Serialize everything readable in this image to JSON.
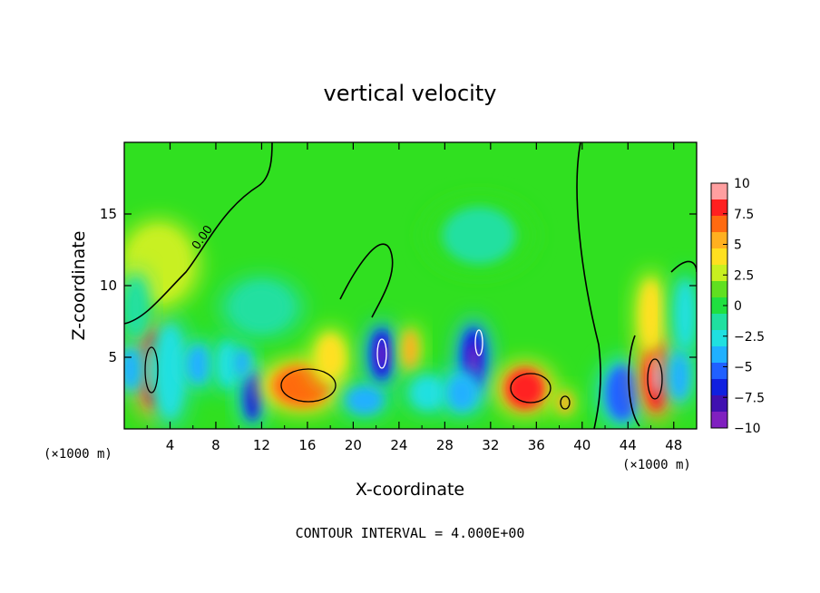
{
  "chart_data": {
    "type": "heatmap",
    "title": "vertical velocity",
    "xlabel": "X-coordinate",
    "ylabel": "Z-coordinate",
    "x_unit_left": "(×1000 m)",
    "x_unit_right": "(×1000 m)",
    "xlim": [
      0,
      50
    ],
    "ylim": [
      0,
      20
    ],
    "x_ticks": [
      4,
      8,
      12,
      16,
      20,
      24,
      28,
      32,
      36,
      40,
      44,
      48
    ],
    "x_tick_labels": [
      "4",
      "8",
      "12",
      "16",
      "20",
      "24",
      "28",
      "32",
      "36",
      "40",
      "44",
      "48"
    ],
    "y_ticks": [
      5,
      10,
      15
    ],
    "y_tick_labels": [
      "5",
      "10",
      "15"
    ],
    "colorbar": {
      "ticks": [
        10,
        7.5,
        5,
        2.5,
        0,
        -2.5,
        -5,
        -7.5,
        -10
      ],
      "tick_labels": [
        "10",
        "7.5",
        "5",
        "2.5",
        "0",
        "−2.5",
        "−5",
        "−7.5",
        "−10"
      ],
      "colors": [
        "#ff9fa0",
        "#ff2020",
        "#ff6a10",
        "#ffb020",
        "#ffe020",
        "#c8f020",
        "#60e020",
        "#20e040",
        "#20e0a0",
        "#20e0e0",
        "#20b0ff",
        "#2060ff",
        "#1020e0",
        "#4010b0",
        "#8020c0"
      ]
    },
    "contour_label": "0.00",
    "contour_interval_text": "CONTOUR INTERVAL = 4.000E+00",
    "cells": [
      {
        "x": 2.5,
        "z": 4.2,
        "w": 1.6,
        "h": 3.4,
        "v": 8.5
      },
      {
        "x": 0.6,
        "z": 4.2,
        "w": 1.0,
        "h": 1.8,
        "v": -4.0
      },
      {
        "x": 4.0,
        "z": 4.0,
        "w": 1.5,
        "h": 4.0,
        "v": -3.0
      },
      {
        "x": 6.5,
        "z": 4.5,
        "w": 1.2,
        "h": 1.6,
        "v": -5.0
      },
      {
        "x": 9.0,
        "z": 4.5,
        "w": 1.0,
        "h": 2.0,
        "v": -3.0
      },
      {
        "x": 11.2,
        "z": 2.3,
        "w": 1.0,
        "h": 2.2,
        "v": -7.5
      },
      {
        "x": 10.3,
        "z": 4.6,
        "w": 0.8,
        "h": 1.2,
        "v": -5.0
      },
      {
        "x": 15.5,
        "z": 3.0,
        "w": 3.2,
        "h": 1.8,
        "v": 6.0
      },
      {
        "x": 18.0,
        "z": 5.0,
        "w": 1.5,
        "h": 2.0,
        "v": 3.0
      },
      {
        "x": 21.0,
        "z": 2.0,
        "w": 2.0,
        "h": 1.2,
        "v": -3.5
      },
      {
        "x": 22.5,
        "z": 5.2,
        "w": 1.2,
        "h": 2.2,
        "v": -9.0
      },
      {
        "x": 25.0,
        "z": 5.5,
        "w": 0.8,
        "h": 1.8,
        "v": 4.0
      },
      {
        "x": 26.5,
        "z": 2.5,
        "w": 1.8,
        "h": 1.4,
        "v": -3.0
      },
      {
        "x": 30.5,
        "z": 4.8,
        "w": 1.3,
        "h": 2.8,
        "v": -8.0
      },
      {
        "x": 29.5,
        "z": 2.5,
        "w": 1.5,
        "h": 1.5,
        "v": -4.5
      },
      {
        "x": 35.0,
        "z": 2.8,
        "w": 2.2,
        "h": 1.8,
        "v": 7.0
      },
      {
        "x": 38.5,
        "z": 1.8,
        "w": 0.8,
        "h": 0.9,
        "v": 4.0
      },
      {
        "x": 43.5,
        "z": 2.5,
        "w": 1.8,
        "h": 2.4,
        "v": -7.0
      },
      {
        "x": 46.5,
        "z": 3.8,
        "w": 1.4,
        "h": 3.2,
        "v": 8.0
      },
      {
        "x": 48.5,
        "z": 3.8,
        "w": 1.0,
        "h": 2.2,
        "v": -4.5
      },
      {
        "x": 3.0,
        "z": 11.5,
        "w": 3.0,
        "h": 3.0,
        "v": 2.0
      },
      {
        "x": 1.0,
        "z": 8.5,
        "w": 1.0,
        "h": 2.5,
        "v": -1.5
      },
      {
        "x": 46.0,
        "z": 8.0,
        "w": 1.2,
        "h": 3.0,
        "v": 2.5
      },
      {
        "x": 49.0,
        "z": 8.0,
        "w": 1.0,
        "h": 3.0,
        "v": -2.0
      },
      {
        "x": 31.0,
        "z": 13.5,
        "w": 4.0,
        "h": 2.5,
        "v": -1.0
      },
      {
        "x": 12.0,
        "z": 8.5,
        "w": 3.0,
        "h": 2.0,
        "v": -1.5
      }
    ]
  }
}
